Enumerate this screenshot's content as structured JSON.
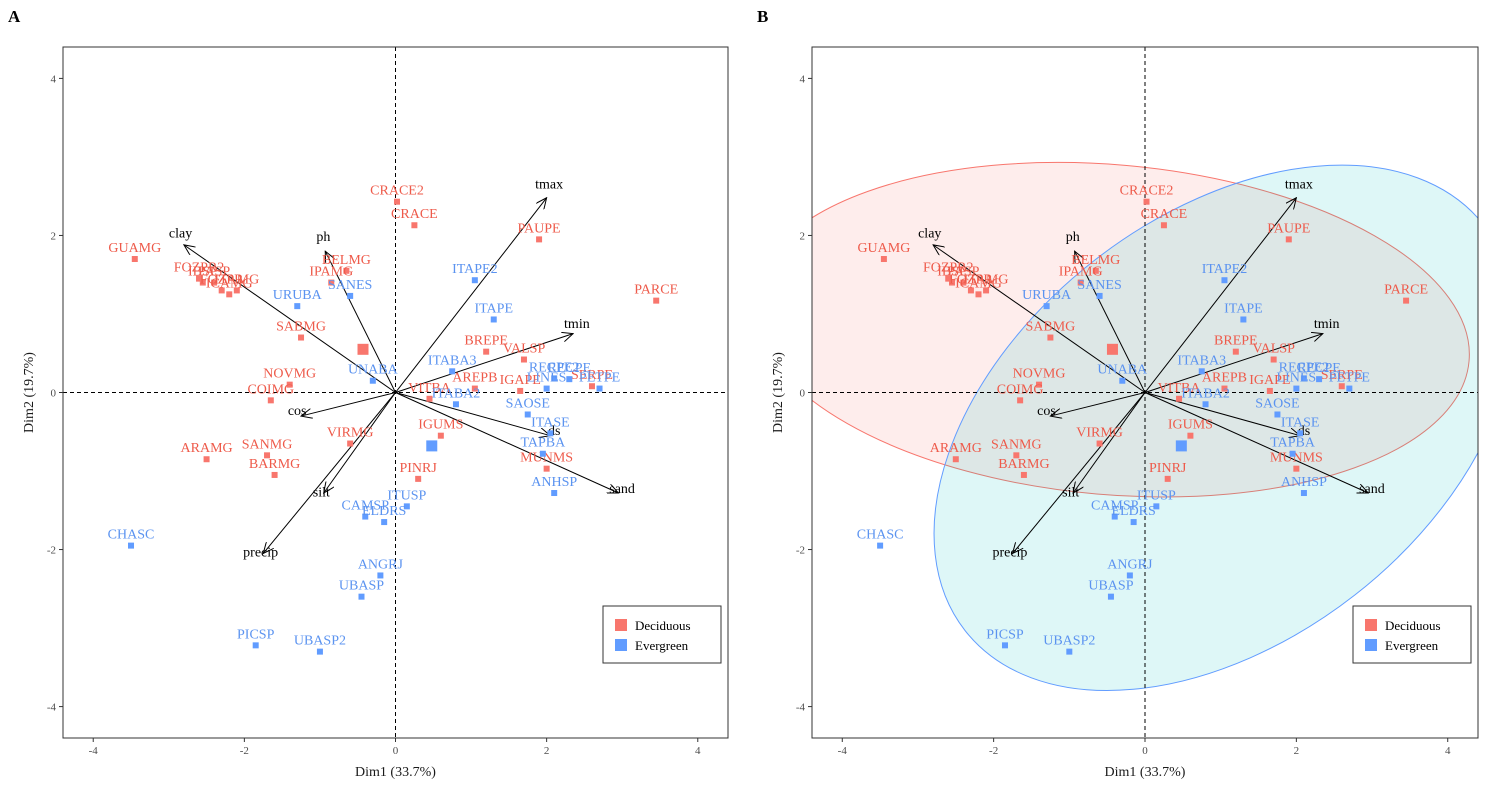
{
  "colors": {
    "Deciduous": "#F8766D",
    "Evergreen": "#619CFF",
    "dec_label": "#EE5A4A",
    "ev_label": "#5B93F0"
  },
  "chart_data": [
    {
      "type": "scatter",
      "panel_label": "A",
      "xlabel": "Dim1 (33.7%)",
      "ylabel": "Dim2 (19.7%)",
      "xlim": [
        -4.4,
        4.4
      ],
      "ylim": [
        -4.4,
        4.4
      ],
      "xticks": [
        -4,
        -2,
        0,
        2,
        4
      ],
      "yticks": [
        -4,
        -2,
        0,
        2,
        4
      ],
      "ellipses": false,
      "legend": {
        "position": "bottom-right",
        "items": [
          "Deciduous",
          "Evergreen"
        ]
      }
    },
    {
      "type": "scatter",
      "panel_label": "B",
      "xlabel": "Dim1 (33.7%)",
      "ylabel": "Dim2 (19.7%)",
      "xlim": [
        -4.4,
        4.4
      ],
      "ylim": [
        -4.4,
        4.4
      ],
      "xticks": [
        -4,
        -2,
        0,
        2,
        4
      ],
      "yticks": [
        -4,
        -2,
        0,
        2,
        4
      ],
      "ellipses": true,
      "legend": {
        "position": "bottom-right",
        "items": [
          "Deciduous",
          "Evergreen"
        ]
      }
    }
  ],
  "points": [
    {
      "label": "CRACE2",
      "group": "Deciduous",
      "x": 0.02,
      "y": 2.43
    },
    {
      "label": "CRACE",
      "group": "Deciduous",
      "x": 0.25,
      "y": 2.13
    },
    {
      "label": "PAUPE",
      "group": "Deciduous",
      "x": 1.9,
      "y": 1.95
    },
    {
      "label": "PARCE",
      "group": "Deciduous",
      "x": 3.45,
      "y": 1.17
    },
    {
      "label": "GUAMG",
      "group": "Deciduous",
      "x": -3.45,
      "y": 1.7
    },
    {
      "label": "FOZPR2",
      "group": "Deciduous",
      "x": -2.6,
      "y": 1.45
    },
    {
      "label": "IBSP",
      "group": "Deciduous",
      "x": -2.55,
      "y": 1.4
    },
    {
      "label": "PASP",
      "group": "Deciduous",
      "x": -2.4,
      "y": 1.4
    },
    {
      "label": "FOZPR",
      "group": "Deciduous",
      "x": -2.3,
      "y": 1.3
    },
    {
      "label": "ITAMG",
      "group": "Deciduous",
      "x": -2.1,
      "y": 1.3
    },
    {
      "label": "ICAMG",
      "group": "Deciduous",
      "x": -2.2,
      "y": 1.25
    },
    {
      "label": "BELMG",
      "group": "Deciduous",
      "x": -0.65,
      "y": 1.55
    },
    {
      "label": "IPAMG",
      "group": "Deciduous",
      "x": -0.85,
      "y": 1.4
    },
    {
      "label": "SABMG",
      "group": "Deciduous",
      "x": -1.25,
      "y": 0.7
    },
    {
      "label": "NOVMG",
      "group": "Deciduous",
      "x": -1.4,
      "y": 0.1
    },
    {
      "label": "COIMG",
      "group": "Deciduous",
      "x": -1.65,
      "y": -0.1
    },
    {
      "label": "ARAMG",
      "group": "Deciduous",
      "x": -2.5,
      "y": -0.85
    },
    {
      "label": "SANMG",
      "group": "Deciduous",
      "x": -1.7,
      "y": -0.8
    },
    {
      "label": "BARMG",
      "group": "Deciduous",
      "x": -1.6,
      "y": -1.05
    },
    {
      "label": "VIRMG",
      "group": "Deciduous",
      "x": -0.6,
      "y": -0.65
    },
    {
      "label": "BREPE",
      "group": "Deciduous",
      "x": 1.2,
      "y": 0.52
    },
    {
      "label": "VALSP",
      "group": "Deciduous",
      "x": 1.7,
      "y": 0.42
    },
    {
      "label": "AREPB",
      "group": "Deciduous",
      "x": 1.05,
      "y": 0.05
    },
    {
      "label": "IGAPE",
      "group": "Deciduous",
      "x": 1.65,
      "y": 0.02
    },
    {
      "label": "SERPE",
      "group": "Deciduous",
      "x": 2.6,
      "y": 0.08
    },
    {
      "label": "VITBA",
      "group": "Deciduous",
      "x": 0.45,
      "y": -0.08
    },
    {
      "label": "IGUMS",
      "group": "Deciduous",
      "x": 0.6,
      "y": -0.55
    },
    {
      "label": "MUNMS",
      "group": "Deciduous",
      "x": 2.0,
      "y": -0.97
    },
    {
      "label": "PINRJ",
      "group": "Deciduous",
      "x": 0.3,
      "y": -1.1
    },
    {
      "label": "ITAPE2",
      "group": "Evergreen",
      "x": 1.05,
      "y": 1.43
    },
    {
      "label": "ITAPE",
      "group": "Evergreen",
      "x": 1.3,
      "y": 0.93
    },
    {
      "label": "SANES",
      "group": "Evergreen",
      "x": -0.6,
      "y": 1.23
    },
    {
      "label": "URUBA",
      "group": "Evergreen",
      "x": -1.3,
      "y": 1.1
    },
    {
      "label": "UNABA",
      "group": "Evergreen",
      "x": -0.3,
      "y": 0.15
    },
    {
      "label": "ITABA3",
      "group": "Evergreen",
      "x": 0.75,
      "y": 0.27
    },
    {
      "label": "ITABA2",
      "group": "Evergreen",
      "x": 0.8,
      "y": -0.15
    },
    {
      "label": "RECPE2",
      "group": "Evergreen",
      "x": 2.1,
      "y": 0.18
    },
    {
      "label": "RECPE",
      "group": "Evergreen",
      "x": 2.3,
      "y": 0.17
    },
    {
      "label": "LINES",
      "group": "Evergreen",
      "x": 2.0,
      "y": 0.05
    },
    {
      "label": "PETPE",
      "group": "Evergreen",
      "x": 2.7,
      "y": 0.05
    },
    {
      "label": "SAOSE",
      "group": "Evergreen",
      "x": 1.75,
      "y": -0.28
    },
    {
      "label": "ITASE",
      "group": "Evergreen",
      "x": 2.05,
      "y": -0.52
    },
    {
      "label": "TAPBA",
      "group": "Evergreen",
      "x": 1.95,
      "y": -0.78
    },
    {
      "label": "ANHSP",
      "group": "Evergreen",
      "x": 2.1,
      "y": -1.28
    },
    {
      "label": "ITUSP",
      "group": "Evergreen",
      "x": 0.15,
      "y": -1.45
    },
    {
      "label": "CAMSP",
      "group": "Evergreen",
      "x": -0.4,
      "y": -1.58
    },
    {
      "label": "ELDRS",
      "group": "Evergreen",
      "x": -0.15,
      "y": -1.65
    },
    {
      "label": "CHASC",
      "group": "Evergreen",
      "x": -3.5,
      "y": -1.95
    },
    {
      "label": "ANGRJ",
      "group": "Evergreen",
      "x": -0.2,
      "y": -2.33
    },
    {
      "label": "UBASP",
      "group": "Evergreen",
      "x": -0.45,
      "y": -2.6
    },
    {
      "label": "PICSP",
      "group": "Evergreen",
      "x": -1.85,
      "y": -3.22
    },
    {
      "label": "UBASP2",
      "group": "Evergreen",
      "x": -1.0,
      "y": -3.3
    }
  ],
  "centroids": [
    {
      "group": "Deciduous",
      "x": -0.43,
      "y": 0.55
    },
    {
      "group": "Evergreen",
      "x": 0.48,
      "y": -0.68
    }
  ],
  "variables": [
    {
      "label": "tmax",
      "x": 2.0,
      "y": 2.48
    },
    {
      "label": "clay",
      "x": -2.8,
      "y": 1.88
    },
    {
      "label": "ph",
      "x": -0.93,
      "y": 1.8
    },
    {
      "label": "tmin",
      "x": 2.35,
      "y": 0.75
    },
    {
      "label": "cos",
      "x": -1.25,
      "y": -0.3
    },
    {
      "label": "ds",
      "x": 2.05,
      "y": -0.55
    },
    {
      "label": "sand",
      "x": 2.95,
      "y": -1.28
    },
    {
      "label": "silt",
      "x": -0.95,
      "y": -1.28
    },
    {
      "label": "precip",
      "x": -1.75,
      "y": -2.05
    }
  ],
  "ellipse_params": [
    {
      "group": "Deciduous",
      "cx": -0.45,
      "cy": 0.8,
      "rx": 4.75,
      "ry": 2.1,
      "angle_deg": -5
    },
    {
      "group": "Evergreen",
      "cx": 1.05,
      "cy": -0.45,
      "rx": 4.35,
      "ry": 2.7,
      "angle_deg": 38
    }
  ]
}
